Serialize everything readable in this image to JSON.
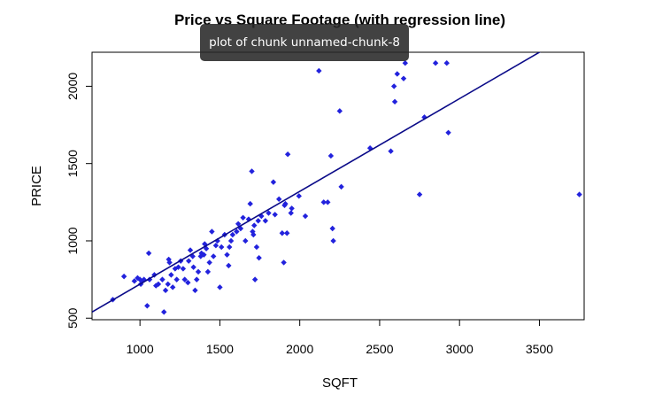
{
  "tooltip": {
    "text": "plot of chunk unnamed-chunk-8"
  },
  "colors": {
    "points": "#2222dd",
    "regression_line": "#0a0a88",
    "axes": "#000000",
    "tooltip_bg": "#282828"
  },
  "chart_data": {
    "type": "scatter",
    "title": "Price vs Square Footage (with regression line)",
    "xlabel": "SQFT",
    "ylabel": "PRICE",
    "xlim": [
      700,
      3780
    ],
    "ylim": [
      490,
      2220
    ],
    "xticks": [
      1000,
      1500,
      2000,
      2500,
      3000,
      3500
    ],
    "yticks": [
      500,
      1000,
      1500,
      2000
    ],
    "grid": false,
    "legend": "none",
    "marker": "filled-diamond",
    "regression_line": {
      "intercept": 120,
      "slope": 0.6,
      "x_range": [
        700,
        3780
      ]
    },
    "x": [
      830,
      900,
      965,
      985,
      1000,
      1005,
      1015,
      1025,
      1045,
      1055,
      1060,
      1090,
      1100,
      1115,
      1140,
      1150,
      1160,
      1175,
      1180,
      1185,
      1195,
      1205,
      1220,
      1230,
      1240,
      1255,
      1270,
      1280,
      1300,
      1305,
      1315,
      1330,
      1335,
      1345,
      1355,
      1365,
      1380,
      1385,
      1400,
      1405,
      1415,
      1425,
      1435,
      1450,
      1460,
      1475,
      1485,
      1500,
      1510,
      1530,
      1545,
      1555,
      1560,
      1570,
      1580,
      1605,
      1615,
      1630,
      1645,
      1660,
      1680,
      1690,
      1700,
      1705,
      1710,
      1715,
      1720,
      1730,
      1740,
      1745,
      1760,
      1785,
      1805,
      1835,
      1845,
      1870,
      1890,
      1900,
      1905,
      1910,
      1920,
      1925,
      1945,
      1950,
      1995,
      2035,
      2120,
      2150,
      2175,
      2195,
      2205,
      2210,
      2250,
      2260,
      2440,
      2570,
      2590,
      2595,
      2610,
      2650,
      2660,
      2750,
      2780,
      2850,
      2920,
      2930,
      3750
    ],
    "y": [
      620,
      770,
      740,
      760,
      750,
      720,
      740,
      750,
      580,
      920,
      750,
      780,
      710,
      720,
      750,
      540,
      680,
      720,
      880,
      860,
      780,
      700,
      820,
      750,
      830,
      870,
      820,
      750,
      730,
      870,
      940,
      900,
      830,
      680,
      750,
      800,
      900,
      920,
      910,
      980,
      950,
      800,
      860,
      1060,
      900,
      970,
      1000,
      700,
      960,
      1040,
      910,
      840,
      960,
      1000,
      1040,
      1060,
      1110,
      1080,
      1150,
      1000,
      1140,
      1240,
      1450,
      1060,
      1040,
      1100,
      750,
      960,
      1130,
      890,
      1160,
      1130,
      1180,
      1380,
      1170,
      1270,
      1050,
      860,
      1230,
      1240,
      1050,
      1560,
      1180,
      1210,
      1290,
      1160,
      2100,
      1250,
      1250,
      1550,
      1080,
      1000,
      1840,
      1350,
      1600,
      1580,
      2000,
      1900,
      2080,
      2050,
      2150,
      1300,
      1800,
      2150,
      2150,
      1700,
      1300
    ]
  }
}
